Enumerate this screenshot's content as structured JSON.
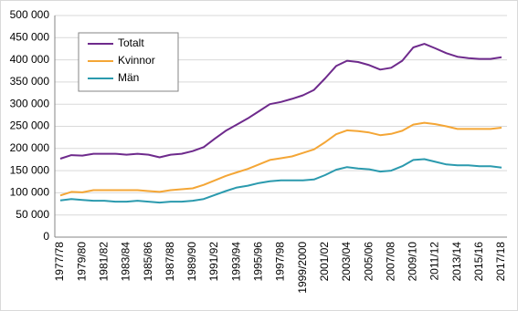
{
  "chart_data": {
    "type": "line",
    "categories": [
      "1977/78",
      null,
      "1979/80",
      null,
      "1981/82",
      null,
      "1983/84",
      null,
      "1985/86",
      null,
      "1987/88",
      null,
      "1989/90",
      null,
      "1991/92",
      null,
      "1993/94",
      null,
      "1995/96",
      null,
      "1997/98",
      null,
      "1999/2000",
      null,
      "2001/02",
      null,
      "2003/04",
      null,
      "2005/06",
      null,
      "2007/08",
      null,
      "2009/10",
      null,
      "2011/12",
      null,
      "2013/14",
      null,
      "2015/16",
      null,
      "2017/18"
    ],
    "series": [
      {
        "name": "Totalt",
        "color": "#6e2a8c",
        "values": [
          177000,
          185000,
          184000,
          188000,
          188000,
          188000,
          186000,
          188000,
          186000,
          180000,
          186000,
          188000,
          194000,
          203000,
          222000,
          240000,
          254000,
          268000,
          284000,
          300000,
          305000,
          312000,
          320000,
          332000,
          358000,
          386000,
          398000,
          395000,
          388000,
          378000,
          382000,
          398000,
          428000,
          436000,
          426000,
          415000,
          407000,
          404000,
          402000,
          402000,
          406000
        ]
      },
      {
        "name": "Kvinnor",
        "color": "#f4a636",
        "values": [
          94000,
          102000,
          101000,
          106000,
          106000,
          106000,
          106000,
          106000,
          104000,
          102000,
          106000,
          108000,
          110000,
          118000,
          128000,
          138000,
          146000,
          154000,
          164000,
          174000,
          178000,
          182000,
          190000,
          198000,
          214000,
          232000,
          241000,
          239000,
          236000,
          230000,
          233000,
          240000,
          254000,
          258000,
          255000,
          250000,
          244000,
          244000,
          244000,
          244000,
          247000
        ]
      },
      {
        "name": "Män",
        "color": "#2b9aae",
        "values": [
          83000,
          86000,
          84000,
          82000,
          82000,
          80000,
          80000,
          82000,
          80000,
          78000,
          80000,
          80000,
          82000,
          86000,
          95000,
          104000,
          112000,
          116000,
          122000,
          126000,
          128000,
          128000,
          128000,
          130000,
          140000,
          152000,
          158000,
          155000,
          153000,
          148000,
          150000,
          160000,
          174000,
          176000,
          170000,
          164000,
          162000,
          162000,
          160000,
          160000,
          157000
        ]
      }
    ],
    "ylim": [
      0,
      500000
    ],
    "yticks": [
      0,
      {
        "value": 50000,
        "label": "50 000"
      },
      {
        "value": 100000,
        "label": "100 000"
      },
      {
        "value": 150000,
        "label": "150 000"
      },
      {
        "value": 200000,
        "label": "200 000"
      },
      {
        "value": 250000,
        "label": "250 000"
      },
      {
        "value": 300000,
        "label": "300 000"
      },
      {
        "value": 350000,
        "label": "350 000"
      },
      {
        "value": 400000,
        "label": "400 000"
      },
      {
        "value": 450000,
        "label": "450 000"
      },
      {
        "value": 500000,
        "label": "500 000"
      }
    ],
    "grid": true,
    "legend": "upper left"
  }
}
